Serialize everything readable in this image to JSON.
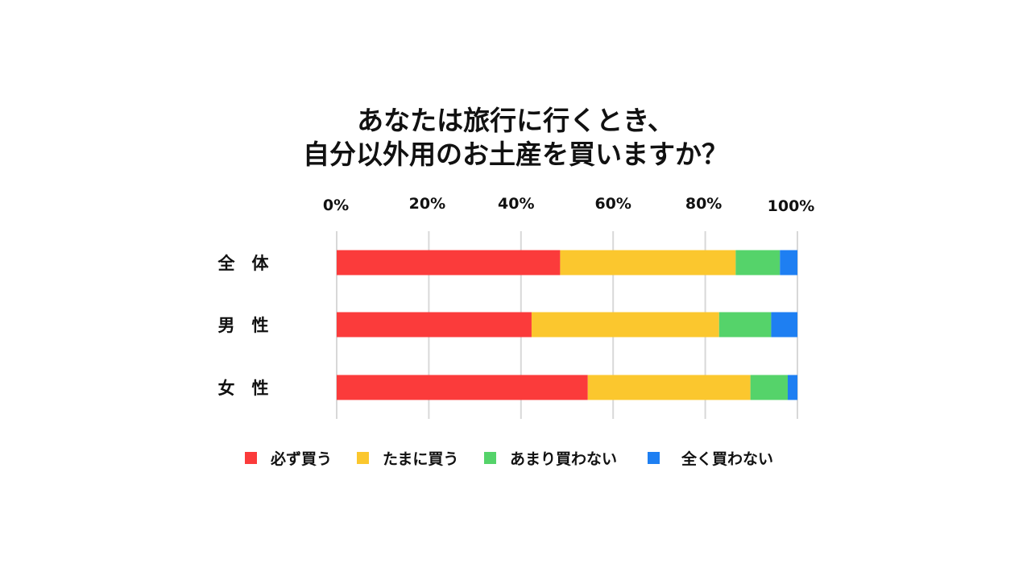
{
  "chart_data": {
    "type": "bar",
    "orientation": "horizontal",
    "stacked": true,
    "title_lines": [
      "あなたは旅行に行くとき、",
      "自分以外用のお土産を買いますか？"
    ],
    "xlim": [
      0,
      100
    ],
    "x_ticks": [
      "0%",
      "20%",
      "40%",
      "60%",
      "80%",
      "100%"
    ],
    "grid": true,
    "legend_position": "bottom",
    "categories": [
      "全　体",
      "男　性",
      "女　性"
    ],
    "series": [
      {
        "name": "必ず買う",
        "color": "#fb3b3b",
        "values": [
          48.5,
          42.3,
          54.5
        ]
      },
      {
        "name": "たまに買う",
        "color": "#fbc72e",
        "values": [
          38.1,
          40.7,
          35.3
        ]
      },
      {
        "name": "あまり買わない",
        "color": "#55d36a",
        "values": [
          9.6,
          11.3,
          8.1
        ]
      },
      {
        "name": "全く買わない",
        "color": "#1e7ff2",
        "values": [
          3.8,
          5.7,
          2.1
        ]
      }
    ]
  }
}
